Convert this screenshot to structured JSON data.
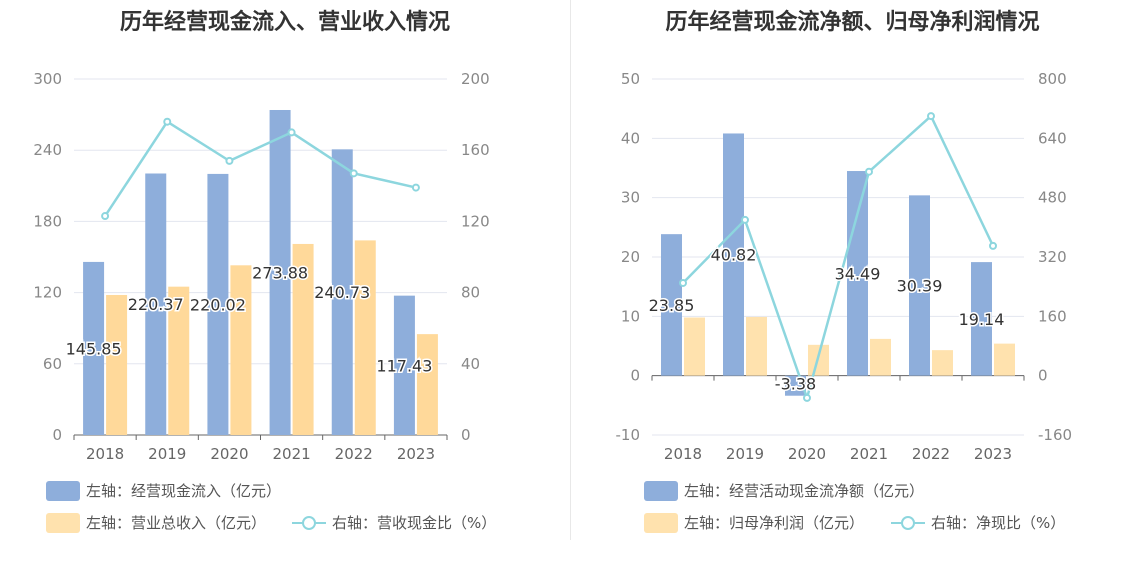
{
  "chart_data": [
    {
      "type": "bar",
      "title": "历年经营现金流入、营业收入情况",
      "categories": [
        "2018",
        "2019",
        "2020",
        "2021",
        "2022",
        "2023"
      ],
      "left_axis": {
        "ylim": [
          0,
          300
        ],
        "ticks": [
          "0",
          "60",
          "120",
          "180",
          "240",
          "300"
        ]
      },
      "right_axis": {
        "ylim": [
          0,
          200
        ],
        "ticks": [
          "0",
          "40",
          "80",
          "120",
          "160",
          "200"
        ]
      },
      "series": [
        {
          "name": "左轴：经营现金流入（亿元）",
          "kind": "bar",
          "axis": "left",
          "color": "#8eaedb",
          "values": [
            145.85,
            220.37,
            220.02,
            273.88,
            240.73,
            117.43
          ],
          "labels": [
            "145.85",
            "220.37",
            "220.02",
            "273.88",
            "240.73",
            "117.43"
          ]
        },
        {
          "name": "左轴：营业总收入（亿元）",
          "kind": "bar",
          "axis": "left",
          "color": "#ffd99a",
          "values": [
            118,
            125,
            143,
            161,
            164,
            85
          ]
        },
        {
          "name": "右轴：营收现金比（%）",
          "kind": "line",
          "axis": "right",
          "color": "#8dd6de",
          "values": [
            123,
            176,
            154,
            170,
            147,
            139
          ]
        }
      ],
      "grid": true,
      "legend_position": "bottom-left"
    },
    {
      "type": "bar",
      "title": "历年经营现金流净额、归母净利润情况",
      "categories": [
        "2018",
        "2019",
        "2020",
        "2021",
        "2022",
        "2023"
      ],
      "left_axis": {
        "ylim": [
          -10,
          50
        ],
        "ticks": [
          "-10",
          "0",
          "10",
          "20",
          "30",
          "40",
          "50"
        ]
      },
      "right_axis": {
        "ylim": [
          -160,
          800
        ],
        "ticks": [
          "-160",
          "0",
          "160",
          "320",
          "480",
          "640",
          "800"
        ]
      },
      "series": [
        {
          "name": "左轴：经营活动现金流净额（亿元）",
          "kind": "bar",
          "axis": "left",
          "color": "#8eaedb",
          "values": [
            23.85,
            40.82,
            -3.38,
            34.49,
            30.39,
            19.14
          ],
          "labels": [
            "23.85",
            "40.82",
            "-3.38",
            "34.49",
            "30.39",
            "19.14"
          ]
        },
        {
          "name": "左轴：归母净利润（亿元）",
          "kind": "bar",
          "axis": "left",
          "color": "#ffe2ae",
          "values": [
            9.8,
            9.9,
            5.2,
            6.2,
            4.3,
            5.4
          ]
        },
        {
          "name": "右轴：净现比（%）",
          "kind": "line",
          "axis": "right",
          "color": "#8dd6de",
          "values": [
            250,
            420,
            -60,
            550,
            700,
            350
          ]
        }
      ],
      "grid": true,
      "legend_position": "bottom-left"
    }
  ]
}
